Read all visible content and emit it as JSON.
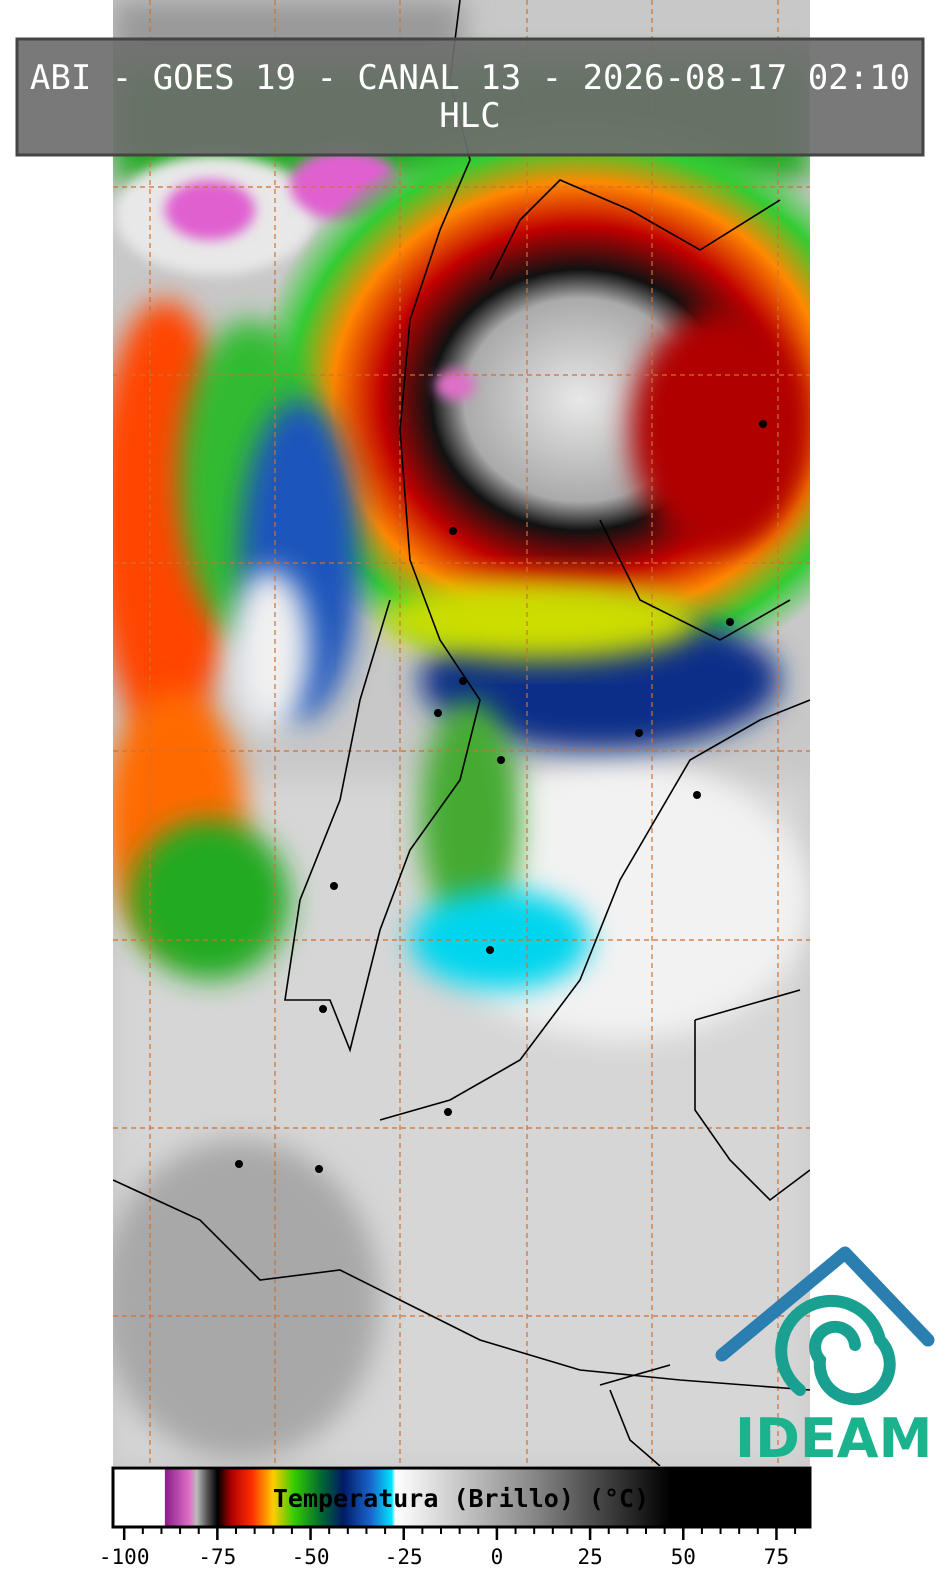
{
  "header": {
    "title": "ABI - GOES 19 - CANAL 13 - 2026-08-17 02:10",
    "subtitle": "HLC"
  },
  "colorbar": {
    "label": "Temperatura (Brillo) (°C)",
    "lim": [
      -103,
      84
    ],
    "ticks": [
      -100,
      -75,
      -50,
      -25,
      0,
      25,
      50,
      75
    ],
    "minor_step": 5
  },
  "logo": {
    "text": "IDEAM"
  }
}
